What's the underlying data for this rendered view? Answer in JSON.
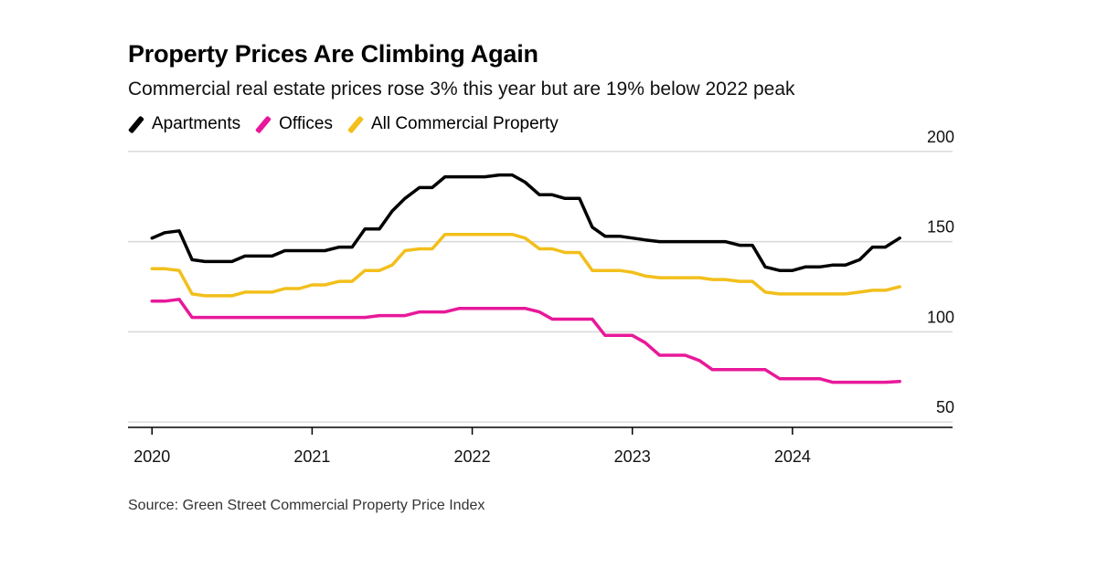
{
  "title": "Property Prices Are Climbing Again",
  "subtitle": "Commercial real estate prices rose 3% this year but are 19% below 2022 peak",
  "source": "Source: Green Street Commercial Property Price Index",
  "colors": {
    "apartments": "#000000",
    "offices": "#e8189a",
    "all": "#f2bf1b",
    "grid": "#d9d9d9",
    "axis": "#000000"
  },
  "chart_data": {
    "type": "line",
    "title": "Property Prices Are Climbing Again",
    "xlabel": "",
    "ylabel": "",
    "xlim": [
      2019.85,
      2025.0
    ],
    "ylim": [
      47,
      203
    ],
    "y_ticks": [
      200,
      150,
      100,
      50
    ],
    "x_ticks": [
      2020,
      2021,
      2022,
      2023,
      2024
    ],
    "x_tick_labels": [
      "2020",
      "2021",
      "2022",
      "2023",
      "2024"
    ],
    "grid": true,
    "legend": "top-left",
    "series": [
      {
        "name": "Apartments",
        "color": "#000000",
        "x": [
          2020.0,
          2020.08,
          2020.17,
          2020.25,
          2020.33,
          2020.42,
          2020.5,
          2020.58,
          2020.67,
          2020.75,
          2020.83,
          2020.92,
          2021.0,
          2021.08,
          2021.17,
          2021.25,
          2021.33,
          2021.42,
          2021.5,
          2021.58,
          2021.67,
          2021.75,
          2021.83,
          2021.92,
          2022.0,
          2022.08,
          2022.17,
          2022.25,
          2022.33,
          2022.42,
          2022.5,
          2022.58,
          2022.67,
          2022.75,
          2022.83,
          2022.92,
          2023.0,
          2023.08,
          2023.17,
          2023.25,
          2023.33,
          2023.42,
          2023.5,
          2023.58,
          2023.67,
          2023.75,
          2023.83,
          2023.92,
          2024.0,
          2024.08,
          2024.17,
          2024.25,
          2024.33,
          2024.42,
          2024.5,
          2024.58,
          2024.67
        ],
        "values": [
          152,
          155,
          156,
          140,
          139,
          139,
          139,
          142,
          142,
          142,
          145,
          145,
          145,
          145,
          147,
          147,
          157,
          157,
          167,
          174,
          180,
          180,
          186,
          186,
          186,
          186,
          187,
          187,
          183,
          176,
          176,
          174,
          174,
          158,
          153,
          153,
          152,
          151,
          150,
          150,
          150,
          150,
          150,
          150,
          148,
          148,
          136,
          134,
          134,
          136,
          136,
          137,
          137,
          140,
          147,
          147,
          152
        ]
      },
      {
        "name": "Offices",
        "color": "#e8189a",
        "x": [
          2020.0,
          2020.08,
          2020.17,
          2020.25,
          2020.33,
          2020.42,
          2020.5,
          2020.58,
          2020.67,
          2020.75,
          2020.83,
          2020.92,
          2021.0,
          2021.08,
          2021.17,
          2021.25,
          2021.33,
          2021.42,
          2021.5,
          2021.58,
          2021.67,
          2021.75,
          2021.83,
          2021.92,
          2022.0,
          2022.08,
          2022.17,
          2022.25,
          2022.33,
          2022.42,
          2022.5,
          2022.58,
          2022.67,
          2022.75,
          2022.83,
          2022.92,
          2023.0,
          2023.08,
          2023.17,
          2023.25,
          2023.33,
          2023.42,
          2023.5,
          2023.58,
          2023.67,
          2023.75,
          2023.83,
          2023.92,
          2024.0,
          2024.08,
          2024.17,
          2024.25,
          2024.33,
          2024.42,
          2024.5,
          2024.58,
          2024.67
        ],
        "values": [
          117,
          117,
          118,
          108,
          108,
          108,
          108,
          108,
          108,
          108,
          108,
          108,
          108,
          108,
          108,
          108,
          108,
          109,
          109,
          109,
          111,
          111,
          111,
          113,
          113,
          113,
          113,
          113,
          113,
          111,
          107,
          107,
          107,
          107,
          98,
          98,
          98,
          94,
          87,
          87,
          87,
          84,
          79,
          79,
          79,
          79,
          79,
          74,
          74,
          74,
          74,
          72,
          72,
          72,
          72,
          72,
          72.5
        ]
      },
      {
        "name": "All Commercial Property",
        "color": "#f2bf1b",
        "x": [
          2020.0,
          2020.08,
          2020.17,
          2020.25,
          2020.33,
          2020.42,
          2020.5,
          2020.58,
          2020.67,
          2020.75,
          2020.83,
          2020.92,
          2021.0,
          2021.08,
          2021.17,
          2021.25,
          2021.33,
          2021.42,
          2021.5,
          2021.58,
          2021.67,
          2021.75,
          2021.83,
          2021.92,
          2022.0,
          2022.08,
          2022.17,
          2022.25,
          2022.33,
          2022.42,
          2022.5,
          2022.58,
          2022.67,
          2022.75,
          2022.83,
          2022.92,
          2023.0,
          2023.08,
          2023.17,
          2023.25,
          2023.33,
          2023.42,
          2023.5,
          2023.58,
          2023.67,
          2023.75,
          2023.83,
          2023.92,
          2024.0,
          2024.08,
          2024.17,
          2024.25,
          2024.33,
          2024.42,
          2024.5,
          2024.58,
          2024.67
        ],
        "values": [
          135,
          135,
          134,
          121,
          120,
          120,
          120,
          122,
          122,
          122,
          124,
          124,
          126,
          126,
          128,
          128,
          134,
          134,
          137,
          145,
          146,
          146,
          154,
          154,
          154,
          154,
          154,
          154,
          152,
          146,
          146,
          144,
          144,
          134,
          134,
          134,
          133,
          131,
          130,
          130,
          130,
          130,
          129,
          129,
          128,
          128,
          122,
          121,
          121,
          121,
          121,
          121,
          121,
          122,
          123,
          123,
          125
        ]
      }
    ]
  }
}
